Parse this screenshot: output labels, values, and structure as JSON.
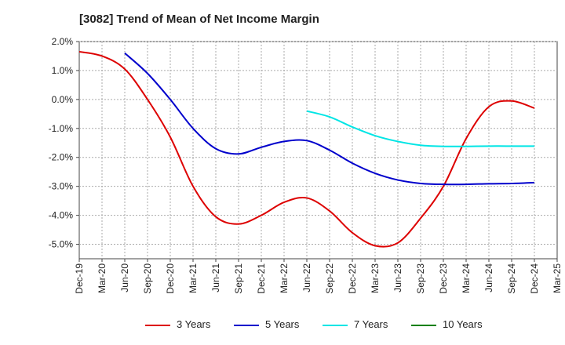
{
  "chart_data": {
    "type": "line",
    "title": "[3082]  Trend of Mean of Net Income Margin",
    "xlabel": "",
    "ylabel": "",
    "ylim": [
      -5.5,
      2.0
    ],
    "y_ticks": [
      "2.0%",
      "1.0%",
      "0.0%",
      "-1.0%",
      "-2.0%",
      "-3.0%",
      "-4.0%",
      "-5.0%"
    ],
    "y_tick_values": [
      2,
      1,
      0,
      -1,
      -2,
      -3,
      -4,
      -5
    ],
    "categories": [
      "Dec-19",
      "Mar-20",
      "Jun-20",
      "Sep-20",
      "Dec-20",
      "Mar-21",
      "Jun-21",
      "Sep-21",
      "Dec-21",
      "Mar-22",
      "Jun-22",
      "Sep-22",
      "Dec-22",
      "Mar-23",
      "Jun-23",
      "Sep-23",
      "Dec-23",
      "Mar-24",
      "Jun-24",
      "Sep-24",
      "Dec-24",
      "Mar-25"
    ],
    "grid": true,
    "legend_position": "bottom",
    "series": [
      {
        "name": "3 Years",
        "color": "#dd0000",
        "values": [
          1.65,
          1.5,
          1.05,
          0.0,
          -1.3,
          -3.0,
          -4.05,
          -4.3,
          -4.0,
          -3.55,
          -3.4,
          -3.85,
          -4.6,
          -5.05,
          -4.95,
          -4.1,
          -3.0,
          -1.35,
          -0.25,
          -0.05,
          -0.3,
          null
        ]
      },
      {
        "name": "5 Years",
        "color": "#0000cc",
        "values": [
          null,
          null,
          1.6,
          0.9,
          0.0,
          -1.0,
          -1.7,
          -1.88,
          -1.65,
          -1.45,
          -1.42,
          -1.75,
          -2.2,
          -2.55,
          -2.78,
          -2.9,
          -2.93,
          -2.93,
          -2.91,
          -2.9,
          -2.87,
          null
        ]
      },
      {
        "name": "7 Years",
        "color": "#00e5e5",
        "values": [
          null,
          null,
          null,
          null,
          null,
          null,
          null,
          null,
          null,
          null,
          -0.4,
          -0.6,
          -0.95,
          -1.25,
          -1.45,
          -1.58,
          -1.62,
          -1.62,
          -1.61,
          -1.61,
          -1.61,
          null
        ]
      },
      {
        "name": "10 Years",
        "color": "#008000",
        "values": [
          null,
          null,
          null,
          null,
          null,
          null,
          null,
          null,
          null,
          null,
          null,
          null,
          null,
          null,
          null,
          null,
          null,
          null,
          null,
          null,
          null,
          null
        ]
      }
    ]
  }
}
